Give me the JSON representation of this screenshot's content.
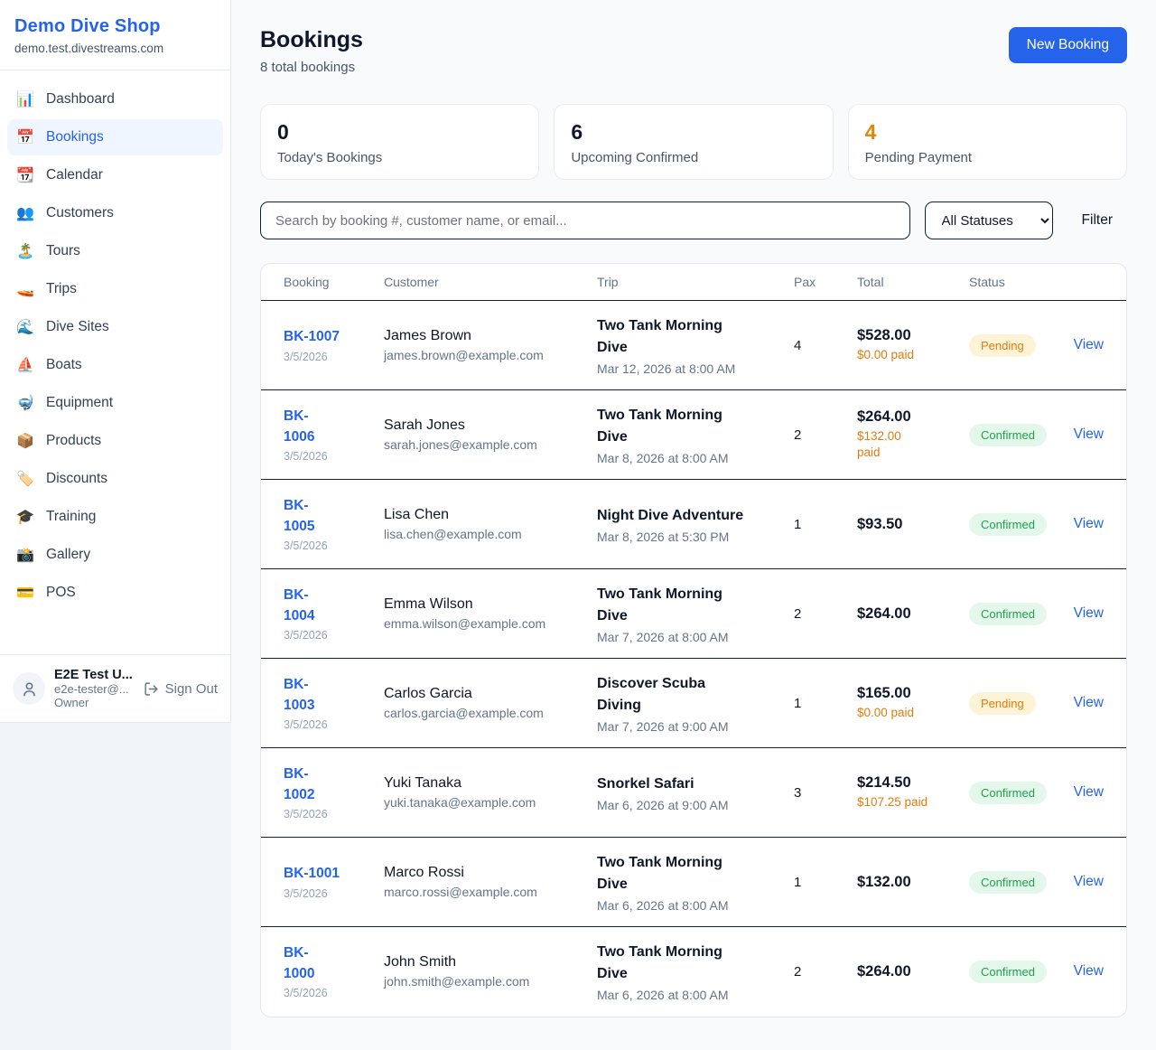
{
  "sidebar": {
    "brand": "Demo Dive Shop",
    "domain": "demo.test.divestreams.com",
    "items": [
      {
        "icon": "📊",
        "icon_name": "dashboard-icon",
        "label": "Dashboard",
        "active": false
      },
      {
        "icon": "📅",
        "icon_name": "bookings-icon",
        "label": "Bookings",
        "active": true
      },
      {
        "icon": "📆",
        "icon_name": "calendar-icon",
        "label": "Calendar",
        "active": false
      },
      {
        "icon": "👥",
        "icon_name": "customers-icon",
        "label": "Customers",
        "active": false
      },
      {
        "icon": "🏝️",
        "icon_name": "tours-icon",
        "label": "Tours",
        "active": false
      },
      {
        "icon": "🚤",
        "icon_name": "trips-icon",
        "label": "Trips",
        "active": false
      },
      {
        "icon": "🌊",
        "icon_name": "dive-sites-icon",
        "label": "Dive Sites",
        "active": false
      },
      {
        "icon": "⛵",
        "icon_name": "boats-icon",
        "label": "Boats",
        "active": false
      },
      {
        "icon": "🤿",
        "icon_name": "equipment-icon",
        "label": "Equipment",
        "active": false
      },
      {
        "icon": "📦",
        "icon_name": "products-icon",
        "label": "Products",
        "active": false
      },
      {
        "icon": "🏷️",
        "icon_name": "discounts-icon",
        "label": "Discounts",
        "active": false
      },
      {
        "icon": "🎓",
        "icon_name": "training-icon",
        "label": "Training",
        "active": false
      },
      {
        "icon": "📸",
        "icon_name": "gallery-icon",
        "label": "Gallery",
        "active": false
      },
      {
        "icon": "💳",
        "icon_name": "pos-icon",
        "label": "POS",
        "active": false
      }
    ],
    "user": {
      "name": "E2E Test U...",
      "email": "e2e-tester@...",
      "role": "Owner",
      "sign_out_label": "Sign Out"
    }
  },
  "header": {
    "title": "Bookings",
    "subtitle": "8 total bookings",
    "new_booking_label": "New Booking"
  },
  "stats": [
    {
      "value": "0",
      "label": "Today's Bookings",
      "color": "#0f172a"
    },
    {
      "value": "6",
      "label": "Upcoming Confirmed",
      "color": "#0f172a"
    },
    {
      "value": "4",
      "label": "Pending Payment",
      "color": "#e0860d"
    }
  ],
  "toolbar": {
    "search_placeholder": "Search by booking #, customer name, or email...",
    "status_filter_selected": "All Statuses",
    "filter_label": "Filter"
  },
  "table": {
    "columns": [
      "Booking",
      "Customer",
      "Trip",
      "Pax",
      "Total",
      "Status",
      ""
    ],
    "view_label": "View",
    "rows": [
      {
        "id": "BK-1007",
        "id_wrapped": false,
        "date": "3/5/2026",
        "customer_name": "James Brown",
        "customer_email": "james.brown@example.com",
        "trip_name": "Two Tank Morning Dive",
        "trip_datetime": "Mar 12, 2026 at 8:00 AM",
        "pax": "4",
        "total": "$528.00",
        "paid": "$0.00 paid",
        "paid_wrapped": false,
        "status": "Pending"
      },
      {
        "id": "BK-1006",
        "id_wrapped": true,
        "date": "3/5/2026",
        "customer_name": "Sarah Jones",
        "customer_email": "sarah.jones@example.com",
        "trip_name": "Two Tank Morning Dive",
        "trip_datetime": "Mar 8, 2026 at 8:00 AM",
        "pax": "2",
        "total": "$264.00",
        "paid": "$132.00 paid",
        "paid_wrapped": true,
        "status": "Confirmed"
      },
      {
        "id": "BK-1005",
        "id_wrapped": true,
        "date": "3/5/2026",
        "customer_name": "Lisa Chen",
        "customer_email": "lisa.chen@example.com",
        "trip_name": "Night Dive Adventure",
        "trip_datetime": "Mar 8, 2026 at 5:30 PM",
        "pax": "1",
        "total": "$93.50",
        "paid": "",
        "paid_wrapped": false,
        "status": "Confirmed"
      },
      {
        "id": "BK-1004",
        "id_wrapped": true,
        "date": "3/5/2026",
        "customer_name": "Emma Wilson",
        "customer_email": "emma.wilson@example.com",
        "trip_name": "Two Tank Morning Dive",
        "trip_datetime": "Mar 7, 2026 at 8:00 AM",
        "pax": "2",
        "total": "$264.00",
        "paid": "",
        "paid_wrapped": false,
        "status": "Confirmed"
      },
      {
        "id": "BK-1003",
        "id_wrapped": true,
        "date": "3/5/2026",
        "customer_name": "Carlos Garcia",
        "customer_email": "carlos.garcia@example.com",
        "trip_name": "Discover Scuba Diving",
        "trip_datetime": "Mar 7, 2026 at 9:00 AM",
        "pax": "1",
        "total": "$165.00",
        "paid": "$0.00 paid",
        "paid_wrapped": false,
        "status": "Pending"
      },
      {
        "id": "BK-1002",
        "id_wrapped": true,
        "date": "3/5/2026",
        "customer_name": "Yuki Tanaka",
        "customer_email": "yuki.tanaka@example.com",
        "trip_name": "Snorkel Safari",
        "trip_datetime": "Mar 6, 2026 at 9:00 AM",
        "pax": "3",
        "total": "$214.50",
        "paid": "$107.25 paid",
        "paid_wrapped": false,
        "status": "Confirmed"
      },
      {
        "id": "BK-1001",
        "id_wrapped": false,
        "date": "3/5/2026",
        "customer_name": "Marco Rossi",
        "customer_email": "marco.rossi@example.com",
        "trip_name": "Two Tank Morning Dive",
        "trip_datetime": "Mar 6, 2026 at 8:00 AM",
        "pax": "1",
        "total": "$132.00",
        "paid": "",
        "paid_wrapped": false,
        "status": "Confirmed"
      },
      {
        "id": "BK-1000",
        "id_wrapped": true,
        "date": "3/5/2026",
        "customer_name": "John Smith",
        "customer_email": "john.smith@example.com",
        "trip_name": "Two Tank Morning Dive",
        "trip_datetime": "Mar 6, 2026 at 8:00 AM",
        "pax": "2",
        "total": "$264.00",
        "paid": "",
        "paid_wrapped": false,
        "status": "Confirmed"
      }
    ]
  },
  "colors": {
    "accent": "#2563eb",
    "pending_text": "#dd7d10",
    "pending_bg": "#fdf3d7",
    "confirmed_text": "#1fa14c",
    "confirmed_bg": "#e3f8eb",
    "paid_orange": "#e07c0c"
  }
}
